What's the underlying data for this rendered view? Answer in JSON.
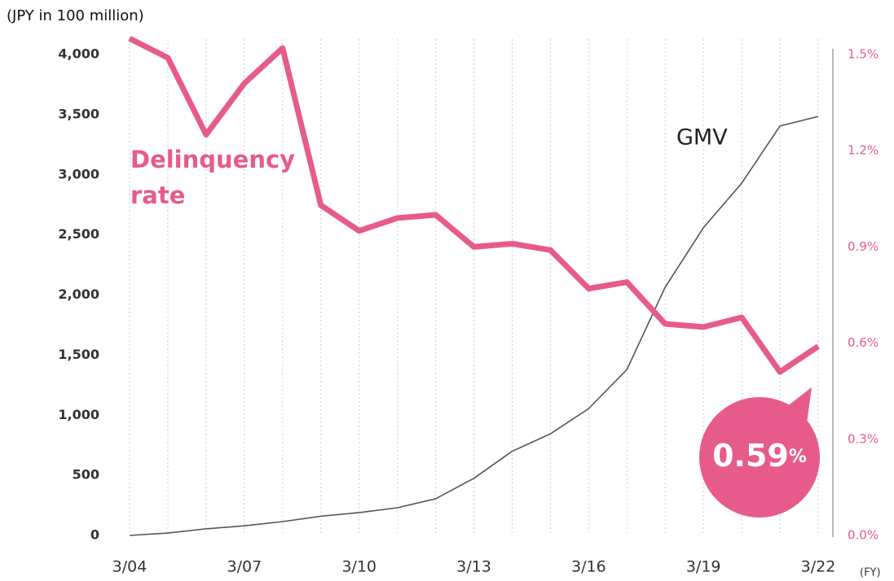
{
  "chart_data": {
    "type": "line",
    "y_axis_label": "(JPY in 100 million)",
    "x_axis_label": "(FY)",
    "categories": [
      "3/04",
      null,
      null,
      "3/07",
      null,
      null,
      "3/10",
      null,
      null,
      "3/13",
      null,
      null,
      "3/16",
      null,
      null,
      "3/19",
      null,
      null,
      "3/22"
    ],
    "series": [
      {
        "name": "GMV",
        "color": "#555555",
        "axis": "y",
        "values": [
          0,
          20,
          55,
          80,
          115,
          160,
          190,
          230,
          305,
          475,
          700,
          845,
          1055,
          1380,
          2065,
          2560,
          2930,
          3405,
          3485
        ]
      },
      {
        "name": "Delinquency rate",
        "color": "#e75b8c",
        "axis": "y2",
        "values": [
          1.55,
          1.49,
          1.25,
          1.41,
          1.52,
          1.03,
          0.95,
          0.99,
          1.0,
          0.9,
          0.91,
          0.89,
          0.77,
          0.79,
          0.66,
          0.65,
          0.68,
          0.51,
          0.59
        ]
      }
    ],
    "ylim": [
      0,
      4000
    ],
    "yticks": [
      0,
      500,
      {
        "value": 1000,
        "label": "1,000"
      },
      {
        "value": 1500,
        "label": "1,500"
      },
      {
        "value": 2000,
        "label": "2,000"
      },
      {
        "value": 2500,
        "label": "2,500"
      },
      {
        "value": 3000,
        "label": "3,000"
      },
      {
        "value": 3500,
        "label": "3,500"
      },
      {
        "value": 4000,
        "label": "4,000"
      }
    ],
    "y2lim": [
      0,
      1.5
    ],
    "y2ticks": [
      {
        "value": 0,
        "label": "0.0%"
      },
      {
        "value": 0.3,
        "label": "0.3%"
      },
      {
        "value": 0.6,
        "label": "0.6%"
      },
      {
        "value": 0.9,
        "label": "0.9%"
      },
      {
        "value": 1.2,
        "label": "1.2%"
      },
      {
        "value": 1.5,
        "label": "1.5%"
      }
    ],
    "x_grid": true,
    "annotation": {
      "value": "0.59",
      "unit": "%"
    }
  }
}
